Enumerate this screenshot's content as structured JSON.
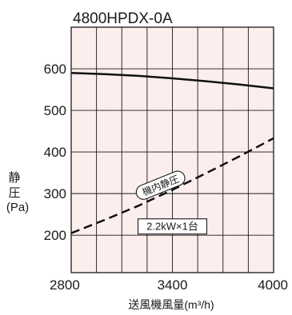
{
  "chart_data": {
    "type": "line",
    "title": "4800HPDX-0A",
    "xlabel": "送風機風量(m³/h)",
    "ylabel_lines": [
      "静",
      "圧",
      "(Pa)"
    ],
    "xlim": [
      2800,
      4000
    ],
    "ylim": [
      110,
      700
    ],
    "x_ticks": [
      2800,
      3400,
      4000
    ],
    "y_ticks": [
      200,
      300,
      400,
      500,
      600
    ],
    "x_grid": [
      2800,
      2950,
      3100,
      3250,
      3400,
      3550,
      3700,
      3850,
      4000
    ],
    "y_grid": [
      200,
      300,
      400,
      500,
      600
    ],
    "grid": true,
    "background_color": "#fdeeee",
    "series": [
      {
        "name": "",
        "style": "solid",
        "x": [
          2800,
          3000,
          3200,
          3400,
          3600,
          3800,
          4000
        ],
        "y": [
          590,
          587,
          583,
          577,
          570,
          562,
          553
        ]
      },
      {
        "name": "機内静圧",
        "style": "dashed",
        "x": [
          2800,
          3000,
          3200,
          3400,
          3600,
          3800,
          4000
        ],
        "y": [
          205,
          237,
          271,
          309,
          349,
          390,
          433
        ]
      }
    ],
    "annotations": [
      {
        "text": "機内静圧",
        "x": 3330,
        "y": 320,
        "boxed": "rounded"
      },
      {
        "text": "2.2kW×1台",
        "x": 3400,
        "y": 222,
        "boxed": "rect"
      }
    ]
  }
}
